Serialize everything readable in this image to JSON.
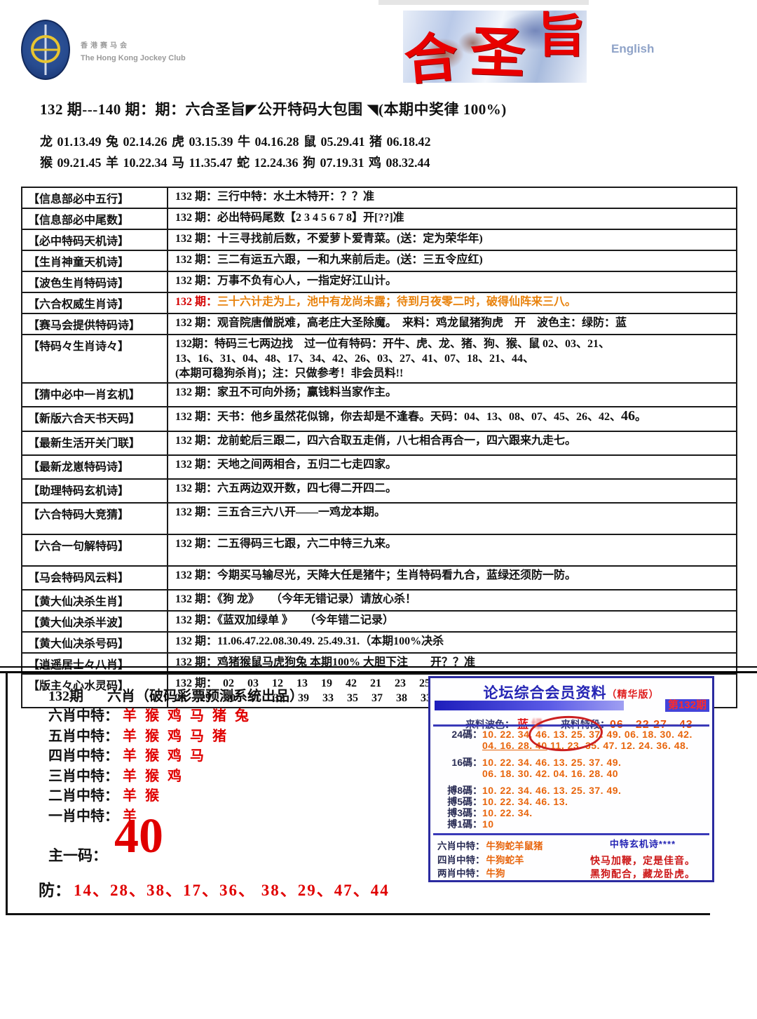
{
  "header": {
    "logo_cn": "香港赛马会",
    "logo_en": "The Hong Kong Jockey Club",
    "banner_chars": [
      "合",
      "圣",
      "旨"
    ],
    "english_link": "English",
    "title_line": "132 期---140 期：期：六合圣旨◤公开特码大包围 ◥(本期中奖律 100%)",
    "zodiac_line1": "龙 01.13.49 兔 02.14.26 虎 03.15.39 牛 04.16.28 鼠 05.29.41 猪 06.18.42",
    "zodiac_line2": "猴 09.21.45 羊 10.22.34 马 11.35.47 蛇 12.24.36 狗 07.19.31 鸡 08.32.44"
  },
  "table": {
    "rows": [
      {
        "label": "【信息部必中五行】",
        "lines": [
          [
            {
              "t": "132 期："
            },
            {
              "t": "三行中特：水土木特开：？？准"
            }
          ]
        ]
      },
      {
        "label": "【信息部必中尾数】",
        "lines": [
          [
            {
              "t": "132 期："
            },
            {
              "t": "必出特码尾数【2 3 4 5 6 7 8】开[??]准"
            }
          ]
        ]
      },
      {
        "label": "【必中特码天机诗】",
        "lines": [
          [
            {
              "t": "132 期："
            },
            {
              "t": "十三寻找前后数，不爱萝卜爱青菜。(送：定为荣华年)"
            }
          ]
        ]
      },
      {
        "label": "【生肖神童天机诗】",
        "lines": [
          [
            {
              "t": "132 期："
            },
            {
              "t": "三二有运五六跟，一和九来前后走。(送：三五令应红)"
            }
          ]
        ]
      },
      {
        "label": "【波色生肖特码诗】",
        "lines": [
          [
            {
              "t": "132 期："
            },
            {
              "t": "万事不负有心人，一指定好江山计。"
            }
          ]
        ]
      },
      {
        "label": "【六合权威生肖诗】",
        "lines": [
          [
            {
              "t": "132 期：",
              "c": "r"
            },
            {
              "t": "三十六计走为上，池中有龙尚未露；待到月夜零二时，破得仙阵来三八。",
              "c": "o"
            }
          ]
        ]
      },
      {
        "label": "【赛马会提供特码诗】",
        "lines": [
          [
            {
              "t": "132 期："
            },
            {
              "t": "观音院唐僧脱难，高老庄大圣除魔。　来料：鸡龙鼠猪狗虎　开　波色主：绿防：蓝"
            }
          ]
        ]
      },
      {
        "label": "【特码々生肖诗々】",
        "lines": [
          [
            {
              "t": "132期："
            },
            {
              "t": "特码三七两边找　过一位有特码：开牛、虎、龙、猪、狗、猴、鼠 02、03、21、"
            }
          ],
          [
            {
              "t": "13、16、31、04、48、17、34、42、26、03、27、41、07、18、21、44、"
            }
          ],
          [
            {
              "t": "(本期可稳狗杀肖)；注：只做参考！非会员料!!"
            }
          ]
        ]
      },
      {
        "label": "【猜中必中一肖玄机】",
        "cls": "med",
        "lines": [
          [
            {
              "t": "132 期："
            },
            {
              "t": "家丑不可向外扬；赢钱料当家作主。"
            }
          ]
        ]
      },
      {
        "label": "【新版六合天书天码】",
        "cls": "med",
        "lines": [
          [
            {
              "t": "132 期："
            },
            {
              "t": "天书：他乡虽然花似锦，你去却是不逢春。天码：04、13、08、07、45、26、42、"
            },
            {
              "t": "46",
              "c": "big"
            },
            {
              "t": "。"
            }
          ]
        ]
      },
      {
        "label": "【最新生活开关门联】",
        "cls": "med",
        "lines": [
          [
            {
              "t": "132 期："
            },
            {
              "t": "龙前蛇后三跟二，四六合取五走俏，八七相合再合一，四六跟来九走七。"
            }
          ]
        ]
      },
      {
        "label": "【最新龙崽特码诗】",
        "cls": "med",
        "lines": [
          [
            {
              "t": "132 期："
            },
            {
              "t": "天地之间两相合，五归二七走四家。"
            }
          ]
        ]
      },
      {
        "label": "【助理特码玄机诗】",
        "cls": "med",
        "lines": [
          [
            {
              "t": "132 期："
            },
            {
              "t": "六五两边双开数，四七得二开四二。"
            }
          ]
        ]
      },
      {
        "label": "【六合特码大竞猜】",
        "cls": "tall",
        "lines": [
          [
            {
              "t": "132 期："
            },
            {
              "t": "三五合三六八开——一鸡龙本期。"
            }
          ]
        ]
      },
      {
        "label": "【六合一句解特码】",
        "cls": "tall",
        "lines": [
          [
            {
              "t": "132 期："
            },
            {
              "t": "二五得码三七跟，六二中特三九来。"
            }
          ]
        ]
      },
      {
        "label": "【马会特码风云料】",
        "cls": "med",
        "lines": [
          [
            {
              "t": "132 期："
            },
            {
              "t": "今期买马输尽光，天降大任是猪牛；生肖特码看九合，蓝绿还须防一防。"
            }
          ]
        ]
      },
      {
        "label": "【黄大仙决杀生肖】",
        "lines": [
          [
            {
              "t": "132 期："
            },
            {
              "t": "《狗 龙》　　（今年无错记录）请放心杀！"
            }
          ]
        ]
      },
      {
        "label": "【黄大仙决杀半波】",
        "lines": [
          [
            {
              "t": "132 期："
            },
            {
              "t": "《蓝双加绿单 》　　（今年错二记录）"
            }
          ]
        ]
      },
      {
        "label": "【黄大仙决杀号码】",
        "lines": [
          [
            {
              "t": "132 期："
            },
            {
              "t": "11.06.47.22.08.30.49.  25.49.31.（本期100%决杀"
            }
          ]
        ]
      },
      {
        "label": "【逍遥居士々八肖】",
        "lines": [
          [
            {
              "t": "132 期："
            },
            {
              "t": "鸡猪猴鼠马虎狗兔  本期100%  大胆下注　　开？？准"
            }
          ]
        ]
      },
      {
        "label": "【版主々心水灵码】",
        "lines": [
          [
            {
              "t": "132 期：　"
            },
            {
              "t": "02 03 12 13 19 42 21 23 25 26 27",
              "c": "sp"
            }
          ],
          [
            {
              "t": "28 29 30 31 32 39 33 35 37 38 33 44　 方先生",
              "c": "sp"
            }
          ]
        ]
      }
    ]
  },
  "bottom_left": {
    "heading_issue": "132期",
    "heading_title": "六肖（破码彩票预测系统出品）",
    "rows": [
      {
        "label": "六肖中特：",
        "value": "羊猴鸡马猪兔"
      },
      {
        "label": "五肖中特：",
        "value": "羊猴鸡马猪"
      },
      {
        "label": "四肖中特：",
        "value": "羊猴鸡马"
      },
      {
        "label": "三肖中特：",
        "value": "羊猴鸡"
      },
      {
        "label": "二肖中特：",
        "value": "羊猴"
      },
      {
        "label": "一肖中特：",
        "value": "羊"
      }
    ],
    "main_code_label": "主一码：",
    "main_code": "40",
    "guard_label": "防：",
    "guard_numbers": "14、28、38、17、36、 38、29、47、44"
  },
  "member_box": {
    "title": "论坛综合会员资料",
    "title_suffix": "（精华版）",
    "issue_chip": "第132期",
    "wave_label": "来料波色：",
    "wave_value_blue": "蓝",
    "wave_value_green": "绿",
    "segment_label": "来料特段：",
    "segment_value": "06—22 27—43",
    "code_rows": [
      {
        "label": "24碼：",
        "gap": false,
        "lines": [
          [
            {
              "t": "10. 22. 34. 46. 13. 25. 37. 49. 06. 18. 30. 42."
            }
          ],
          [
            {
              "t": "04. 16. 28. 40",
              "u": true
            },
            {
              "t": " 11. 23. 35. 47. 12. 24. 36. 48."
            }
          ]
        ]
      },
      {
        "label": "16碼：",
        "gap": true,
        "lines": [
          [
            {
              "t": "10. 22. 34. 46. 13. 25. 37. 49."
            }
          ],
          [
            {
              "t": "06. 18. 30. 42. 04. 16. 28. 40"
            }
          ]
        ]
      },
      {
        "label": "搏8碼：",
        "gap": true,
        "lines": [
          [
            {
              "t": "10. 22. 34. 46. 13. 25. 37. 49."
            }
          ]
        ]
      },
      {
        "label": "搏5碼：",
        "gap": false,
        "lines": [
          [
            {
              "t": "10. 22. 34. 46. 13."
            }
          ]
        ]
      },
      {
        "label": "搏3碼：",
        "gap": false,
        "lines": [
          [
            {
              "t": "10. 22. 34."
            }
          ]
        ]
      },
      {
        "label": "搏1碼：",
        "gap": false,
        "lines": [
          [
            {
              "t": "10"
            }
          ]
        ]
      }
    ],
    "zodiac_rows": [
      {
        "label": "六肖中特：",
        "value": "牛狗蛇羊鼠猪"
      },
      {
        "label": "四肖中特：",
        "value": "牛狗蛇羊"
      },
      {
        "label": "两肖中特：",
        "value": "牛狗"
      }
    ],
    "poem_title": "中特玄机诗****",
    "poem_lines": [
      "快马加鞭，定是佳音。",
      "黑狗配合，藏龙卧虎。"
    ]
  },
  "colors": {
    "accent_red": "#d40000",
    "orange": "#e8820c",
    "navy": "#2b2ba0",
    "code_orange": "#e8650c"
  }
}
